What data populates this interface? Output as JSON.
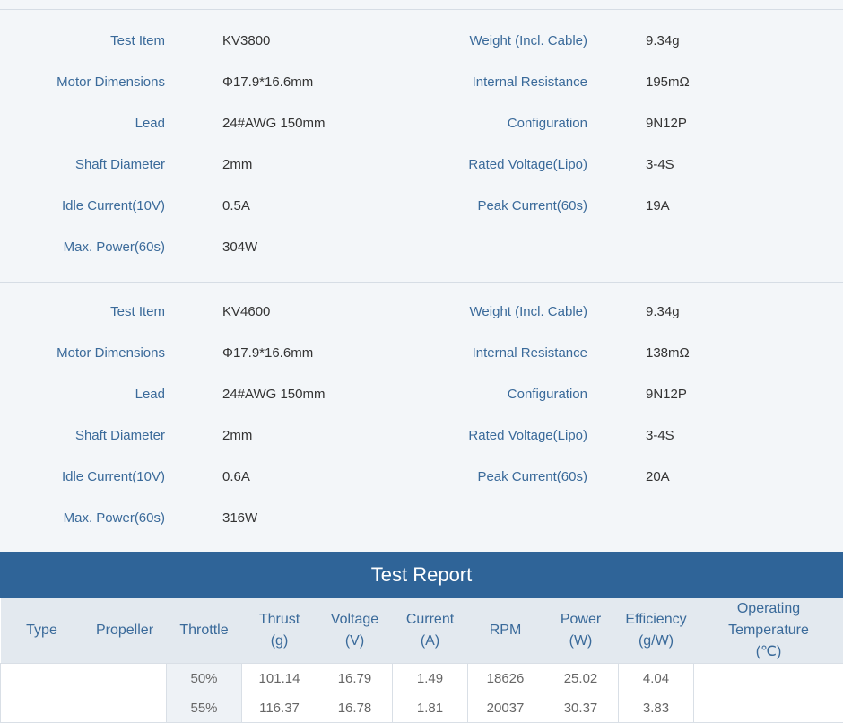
{
  "specs": [
    {
      "left": [
        {
          "label": "Test Item",
          "value": "KV3800"
        },
        {
          "label": "Motor Dimensions",
          "value": "Φ17.9*16.6mm"
        },
        {
          "label": "Lead",
          "value": "24#AWG 150mm"
        },
        {
          "label": "Shaft Diameter",
          "value": "2mm"
        },
        {
          "label": "Idle Current(10V)",
          "value": "0.5A"
        },
        {
          "label": "Max. Power(60s)",
          "value": "304W"
        }
      ],
      "right": [
        {
          "label": "Weight (Incl. Cable)",
          "value": "9.34g"
        },
        {
          "label": "Internal Resistance",
          "value": "195mΩ"
        },
        {
          "label": "Configuration",
          "value": "9N12P"
        },
        {
          "label": "Rated Voltage(Lipo)",
          "value": "3-4S"
        },
        {
          "label": "Peak Current(60s)",
          "value": "19A"
        }
      ]
    },
    {
      "left": [
        {
          "label": "Test Item",
          "value": "KV4600"
        },
        {
          "label": "Motor Dimensions",
          "value": "Φ17.9*16.6mm"
        },
        {
          "label": "Lead",
          "value": "24#AWG 150mm"
        },
        {
          "label": "Shaft Diameter",
          "value": "2mm"
        },
        {
          "label": "Idle Current(10V)",
          "value": "0.6A"
        },
        {
          "label": "Max. Power(60s)",
          "value": "316W"
        }
      ],
      "right": [
        {
          "label": "Weight (Incl. Cable)",
          "value": "9.34g"
        },
        {
          "label": "Internal Resistance",
          "value": "138mΩ"
        },
        {
          "label": "Configuration",
          "value": "9N12P"
        },
        {
          "label": "Rated Voltage(Lipo)",
          "value": "3-4S"
        },
        {
          "label": "Peak Current(60s)",
          "value": "20A"
        }
      ]
    }
  ],
  "report": {
    "title": "Test Report",
    "headers": [
      "Type",
      "Propeller",
      "Throttle",
      "Thrust\n(g)",
      "Voltage\n(V)",
      "Current\n(A)",
      "RPM",
      "Power\n(W)",
      "Efficiency\n(g/W)",
      "Operating\nTemperature\n(℃)"
    ],
    "rows": [
      [
        "50%",
        101.14,
        16.79,
        1.49,
        18626,
        25.02,
        4.04
      ],
      [
        "55%",
        116.37,
        16.78,
        1.81,
        20037,
        30.37,
        3.83
      ]
    ]
  }
}
